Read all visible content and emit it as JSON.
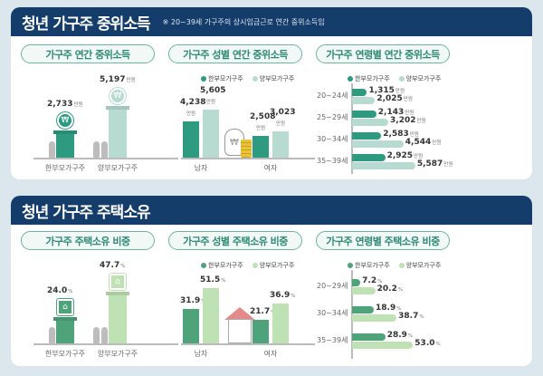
{
  "colors": {
    "header": "#143d6b",
    "income_single": "#2e9a80",
    "income_two": "#b7dbd1",
    "house_single": "#4fa37a",
    "house_two": "#bfe2b4"
  },
  "legend": {
    "single": "한부모가구주",
    "two": "양부모가구주"
  },
  "units": {
    "manwon": "만원",
    "pct": "%"
  },
  "section1": {
    "title": "청년 가구주 중위소득",
    "note": "※ 20~39세 가구주의 상시임금근로 연간 중위소득임",
    "pills": [
      "가구주 연간 중위소득",
      "가구주 성별 연간 중위소득",
      "가구주 연령별 연간 중위소득"
    ]
  },
  "section2": {
    "title": "청년 가구주 주택소유",
    "pills": [
      "가구주 주택소유 비중",
      "가구주 성별 주택소유 비중",
      "가구주 연령별 주택소유 비중"
    ]
  },
  "chart_data": [
    {
      "type": "bar",
      "title": "가구주 연간 중위소득",
      "categories": [
        "한부모가구주",
        "양부모가구주"
      ],
      "values": [
        2733,
        5197
      ],
      "labels": [
        "2,733",
        "5,197"
      ],
      "unit": "만원"
    },
    {
      "type": "bar",
      "title": "가구주 성별 연간 중위소득",
      "categories": [
        "남자",
        "여자"
      ],
      "series": [
        {
          "name": "한부모가구주",
          "values": [
            4238,
            2508
          ],
          "labels": [
            "4,238",
            "2,508"
          ]
        },
        {
          "name": "양부모가구주",
          "values": [
            5605,
            3023
          ],
          "labels": [
            "5,605",
            "3,023"
          ]
        }
      ],
      "unit": "만원",
      "legend": "top"
    },
    {
      "type": "bar",
      "orientation": "horizontal",
      "title": "가구주 연령별 연간 중위소득",
      "categories": [
        "20~24세",
        "25~29세",
        "30~34세",
        "35~39세"
      ],
      "series": [
        {
          "name": "한부모가구주",
          "values": [
            1315,
            2143,
            2583,
            2925
          ],
          "labels": [
            "1,315",
            "2,143",
            "2,583",
            "2,925"
          ]
        },
        {
          "name": "양부모가구주",
          "values": [
            2025,
            3202,
            4544,
            5587
          ],
          "labels": [
            "2,025",
            "3,202",
            "4,544",
            "5,587"
          ]
        }
      ],
      "unit": "만원",
      "legend": "top"
    },
    {
      "type": "bar",
      "title": "가구주 주택소유 비중",
      "categories": [
        "한부모가구주",
        "양부모가구주"
      ],
      "values": [
        24.0,
        47.7
      ],
      "labels": [
        "24.0",
        "47.7"
      ],
      "unit": "%"
    },
    {
      "type": "bar",
      "title": "가구주 성별 주택소유 비중",
      "categories": [
        "남자",
        "여자"
      ],
      "series": [
        {
          "name": "한부모가구주",
          "values": [
            31.9,
            21.7
          ],
          "labels": [
            "31.9",
            "21.7"
          ]
        },
        {
          "name": "양부모가구주",
          "values": [
            51.5,
            36.9
          ],
          "labels": [
            "51.5",
            "36.9"
          ]
        }
      ],
      "unit": "%",
      "legend": "top"
    },
    {
      "type": "bar",
      "orientation": "horizontal",
      "title": "가구주 연령별 주택소유 비중",
      "categories": [
        "20~29세",
        "30~34세",
        "35~39세"
      ],
      "series": [
        {
          "name": "한부모가구주",
          "values": [
            7.2,
            18.9,
            28.9
          ],
          "labels": [
            "7.2",
            "18.9",
            "28.9"
          ]
        },
        {
          "name": "양부모가구주",
          "values": [
            20.2,
            38.7,
            53.0
          ],
          "labels": [
            "20.2",
            "38.7",
            "53.0"
          ]
        }
      ],
      "unit": "%",
      "legend": "top"
    }
  ]
}
